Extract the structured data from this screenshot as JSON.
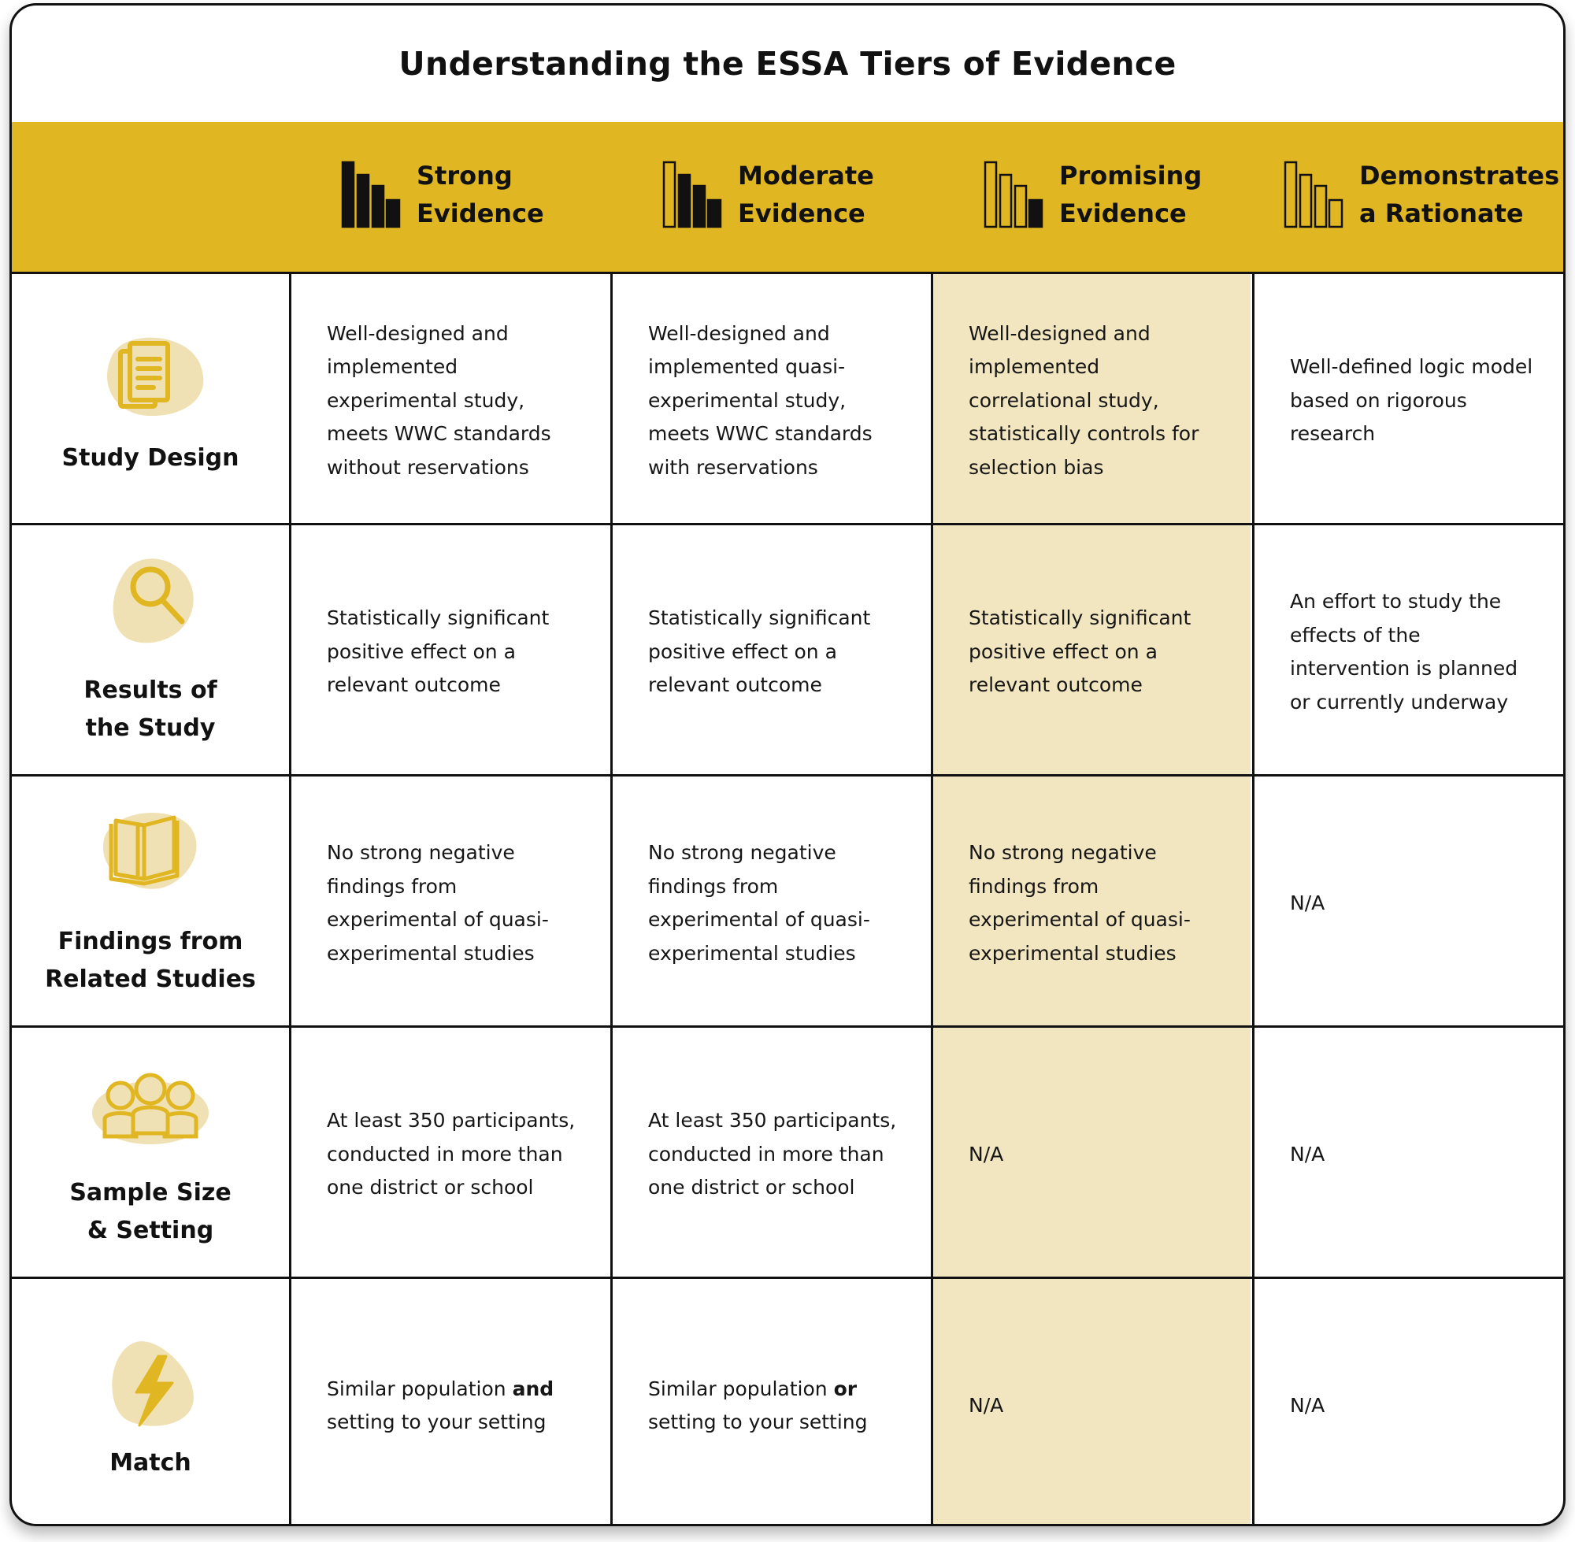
{
  "title": "Understanding the ESSA Tiers of Evidence",
  "tiers": [
    {
      "line1": "Strong",
      "line2": "Evidence",
      "icon": "bar-chart-full-icon"
    },
    {
      "line1": "Moderate",
      "line2": "Evidence",
      "icon": "bar-chart-three-filled-icon"
    },
    {
      "line1": "Promising",
      "line2": "Evidence",
      "icon": "bar-chart-one-filled-icon"
    },
    {
      "line1": "Demonstrates",
      "line2": "a Rationate",
      "icon": "bar-chart-outline-icon"
    }
  ],
  "rows": [
    {
      "line1": "Study Design",
      "line2": "",
      "icon": "document-icon",
      "cells": [
        {
          "lines": [
            "Well-designed and",
            "implemented",
            "experimental study,",
            "meets WWC standards",
            "without reservations"
          ]
        },
        {
          "lines": [
            "Well-designed and",
            "implemented quasi-",
            "experimental study,",
            "meets WWC standards",
            "with reservations"
          ]
        },
        {
          "lines": [
            "Well-designed and",
            "implemented",
            "correlational study,",
            "statistically controls for",
            "selection bias"
          ]
        },
        {
          "lines": [
            "Well-defined logic model",
            "based on rigorous",
            "research"
          ]
        }
      ]
    },
    {
      "line1": "Results of",
      "line2": "the Study",
      "icon": "magnifier-icon",
      "cells": [
        {
          "lines": [
            "Statistically significant",
            "positive effect on a",
            "relevant outcome"
          ]
        },
        {
          "lines": [
            "Statistically significant",
            "positive effect on a",
            "relevant outcome"
          ]
        },
        {
          "lines": [
            "Statistically significant",
            "positive effect on a",
            "relevant outcome"
          ]
        },
        {
          "lines": [
            "An effort to study the",
            "effects of the",
            "intervention is planned",
            "or currently underway"
          ]
        }
      ]
    },
    {
      "line1": "Findings from",
      "line2": "Related Studies",
      "icon": "open-book-icon",
      "cells": [
        {
          "lines": [
            "No strong negative",
            "findings from",
            "experimental of quasi-",
            "experimental studies"
          ]
        },
        {
          "lines": [
            "No strong negative",
            "findings from",
            "experimental of quasi-",
            "experimental studies"
          ]
        },
        {
          "lines": [
            "No strong negative",
            "findings from",
            "experimental of quasi-",
            "experimental studies"
          ]
        },
        {
          "lines": [
            "N/A"
          ]
        }
      ]
    },
    {
      "line1": "Sample Size",
      "line2": "& Setting",
      "icon": "people-group-icon",
      "cells": [
        {
          "lines": [
            "At least 350 participants,",
            "conducted in more than",
            "one district or school"
          ]
        },
        {
          "lines": [
            "At least 350 participants,",
            "conducted in more than",
            "one district or school"
          ]
        },
        {
          "lines": [
            "N/A"
          ]
        },
        {
          "lines": [
            "N/A"
          ]
        }
      ]
    },
    {
      "line1": "Match",
      "line2": "",
      "icon": "lightning-bolt-icon",
      "cells": [
        {
          "lines": [
            "Similar population ",
            "setting to your setting"
          ],
          "emphasis": "and"
        },
        {
          "lines": [
            "Similar population ",
            "setting to your setting"
          ],
          "emphasis": "or"
        },
        {
          "lines": [
            "N/A"
          ]
        },
        {
          "lines": [
            "N/A"
          ]
        }
      ]
    }
  ],
  "colors": {
    "band": "#e0b723",
    "highlight_column": "#f2e6c0",
    "icon_blob": "#f0e1b4",
    "icon_stroke": "#e0b723",
    "ink": "#111111"
  }
}
